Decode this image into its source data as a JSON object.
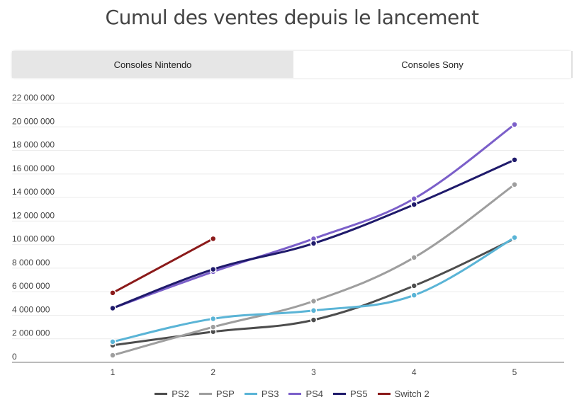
{
  "title": "Cumul des ventes depuis le lancement",
  "tabs": [
    {
      "label": "Consoles Nintendo",
      "active": false
    },
    {
      "label": "Consoles Sony",
      "active": true
    }
  ],
  "chart_data": {
    "type": "line",
    "title": "Cumul des ventes depuis le lancement",
    "xlabel": "",
    "ylabel": "",
    "x": [
      1,
      2,
      3,
      4,
      5
    ],
    "ylim": [
      0,
      22000000
    ],
    "yticks": [
      0,
      2000000,
      4000000,
      6000000,
      8000000,
      10000000,
      12000000,
      14000000,
      16000000,
      18000000,
      20000000,
      22000000
    ],
    "ytick_labels": [
      "0",
      "2 000 000",
      "4 000 000",
      "6 000 000",
      "8 000 000",
      "10 000 000",
      "12 000 000",
      "14 000 000",
      "16 000 000",
      "18 000 000",
      "20 000 000",
      "22 000 000"
    ],
    "grid": true,
    "legend_position": "bottom",
    "series": [
      {
        "name": "PS2",
        "color": "#4d4d4d",
        "values": [
          1450000,
          2600000,
          3600000,
          6500000,
          10500000
        ]
      },
      {
        "name": "PSP",
        "color": "#9e9e9e",
        "values": [
          600000,
          3000000,
          5200000,
          8900000,
          15100000
        ]
      },
      {
        "name": "PS3",
        "color": "#5ab4d6",
        "values": [
          1750000,
          3700000,
          4400000,
          5700000,
          10600000
        ]
      },
      {
        "name": "PS4",
        "color": "#7b5fc9",
        "values": [
          4600000,
          7700000,
          10500000,
          13900000,
          20200000
        ]
      },
      {
        "name": "PS5",
        "color": "#1f1a6b",
        "values": [
          4600000,
          7900000,
          10100000,
          13400000,
          17200000
        ]
      },
      {
        "name": "Switch 2",
        "color": "#8b1a1a",
        "values": [
          5900000,
          10500000,
          null,
          null,
          null
        ]
      }
    ]
  }
}
